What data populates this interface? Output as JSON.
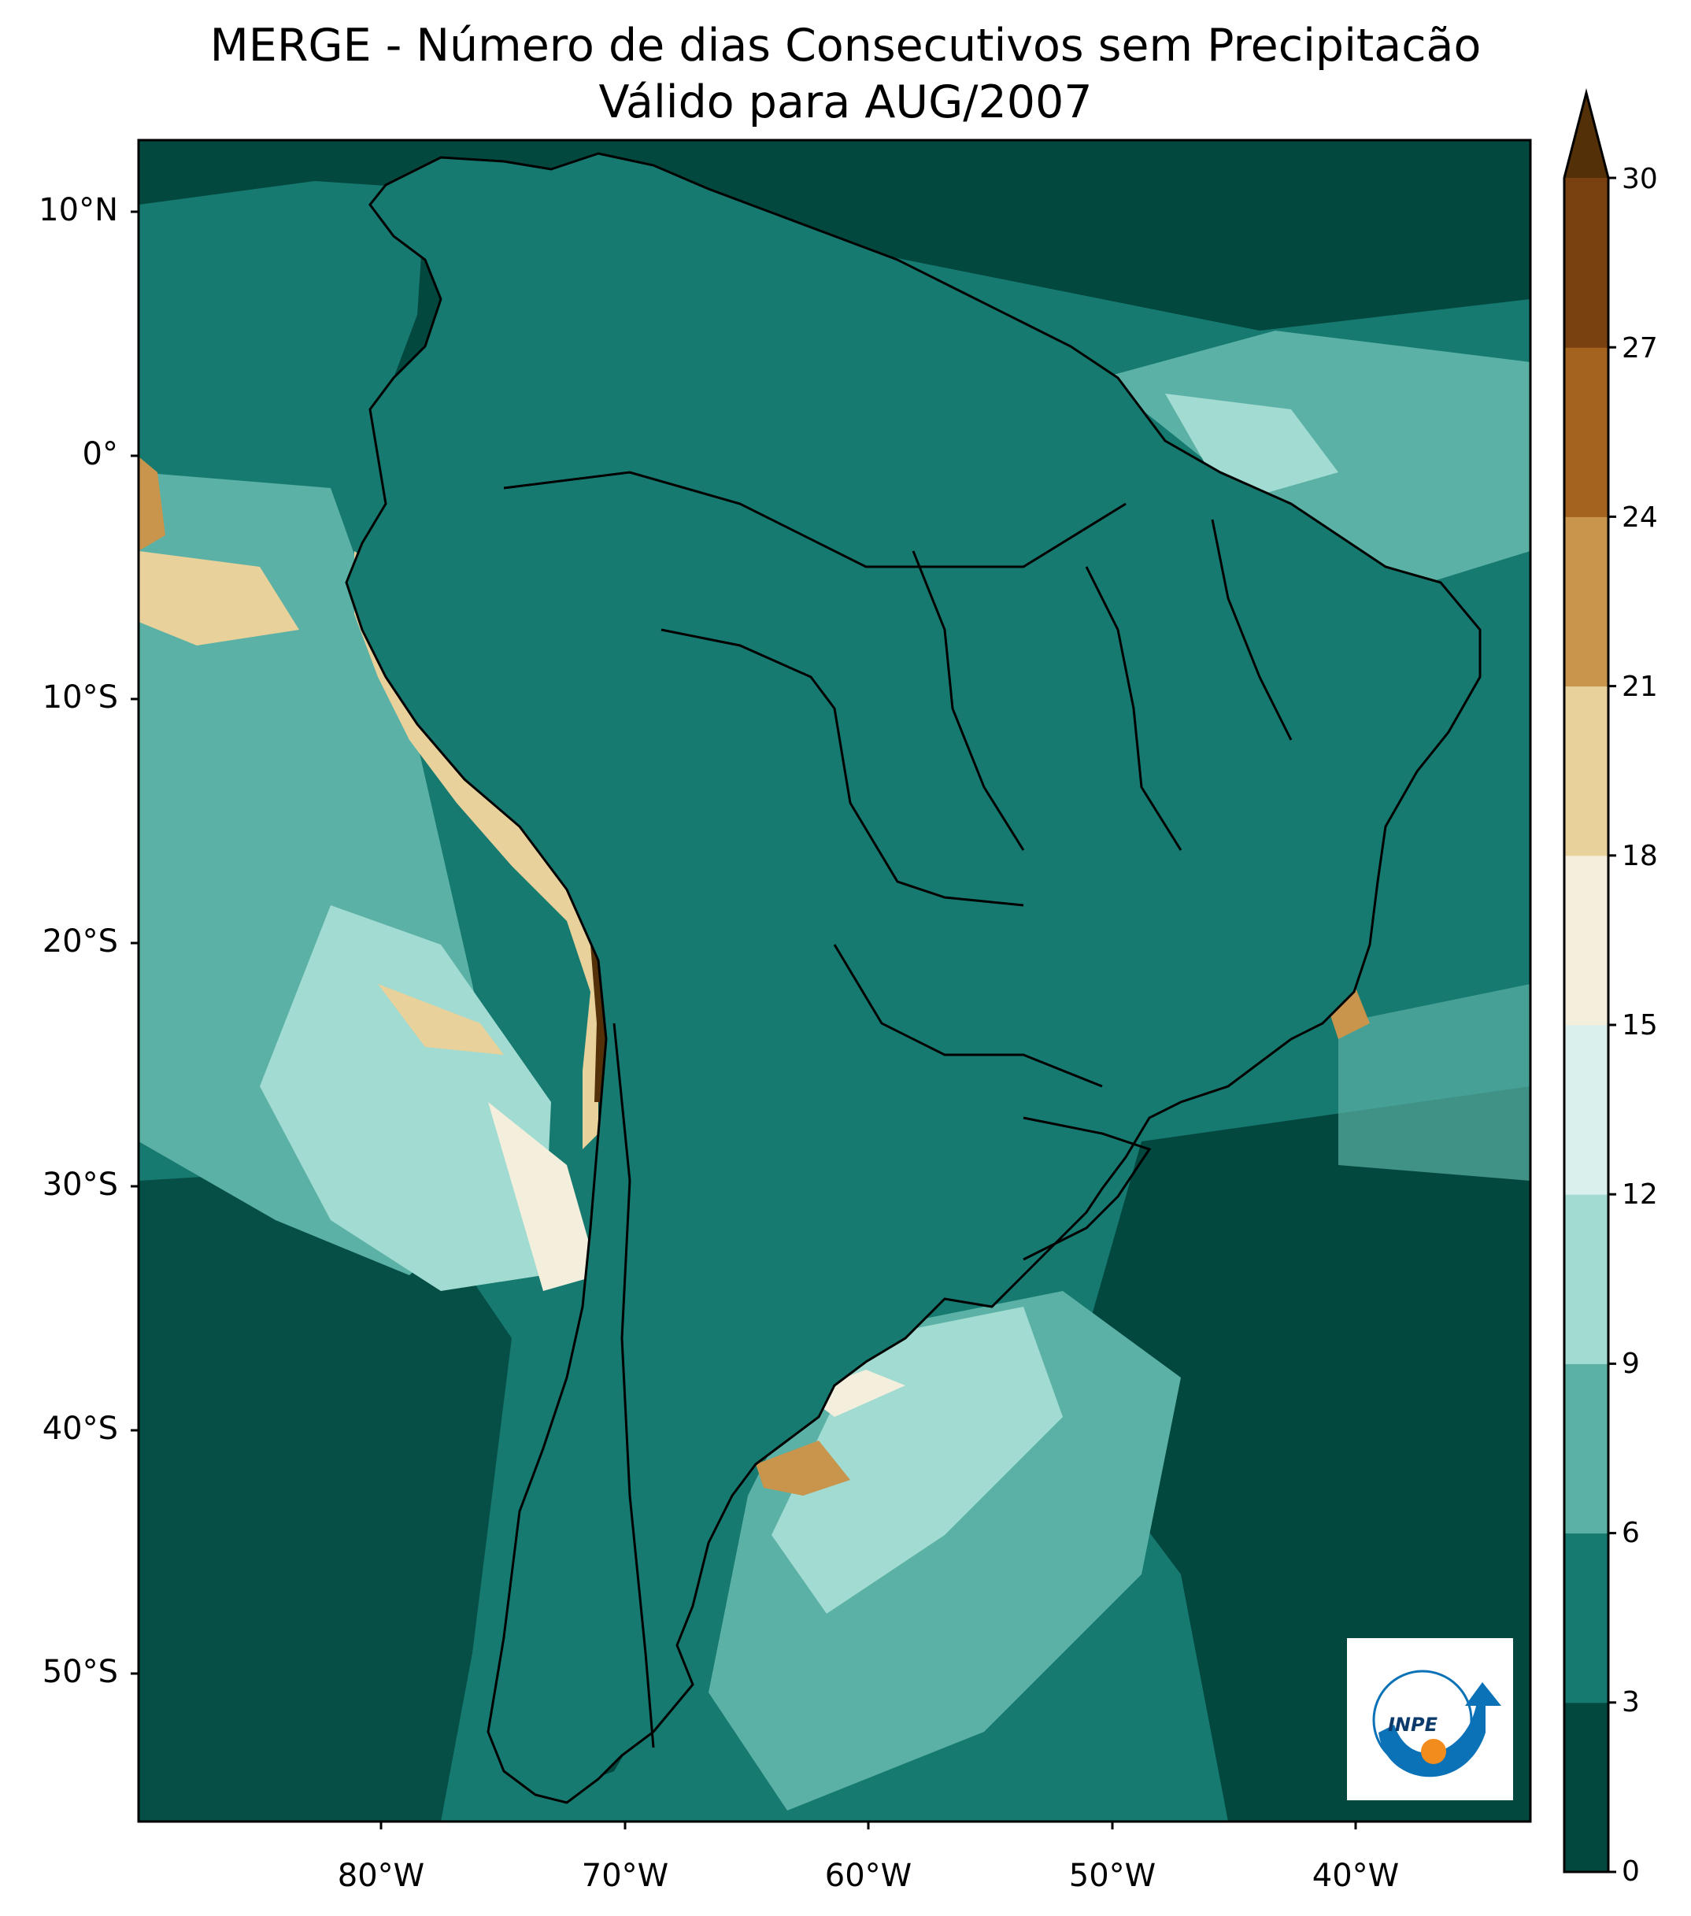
{
  "title": {
    "line1": "MERGE - Número de dias Consecutivos sem Precipitacão",
    "line2": "Válido para AUG/2007"
  },
  "axes": {
    "lat_labels": [
      "10°N",
      "0°",
      "10°S",
      "20°S",
      "30°S",
      "40°S",
      "50°S"
    ],
    "lon_labels": [
      "80°W",
      "70°W",
      "60°W",
      "50°W",
      "40°W"
    ]
  },
  "colorbar": {
    "ticks": [
      "0",
      "3",
      "6",
      "9",
      "12",
      "15",
      "18",
      "21",
      "24",
      "27",
      "30"
    ],
    "colors": [
      "#03483f",
      "#167a71",
      "#5bb1a5",
      "#a1dbd1",
      "#d9f0ec",
      "#f4efdd",
      "#e8d19a",
      "#c9944b",
      "#a4631f",
      "#794010",
      "#533007"
    ],
    "extend": "max"
  },
  "logo": {
    "text": "INPE",
    "arrow_color": "#0b72b8",
    "dot_color": "#f28c1c"
  },
  "map": {
    "region": "South America",
    "colors": {
      "ocean_dark": "#03483f",
      "ocean_mid": "#167a71",
      "ocean_light": "#5bb1a5",
      "ocean_pale": "#a1dbd1",
      "cream": "#f4efdd",
      "tan": "#e8d19a",
      "brown": "#a4631f",
      "dark_brown": "#533007"
    }
  }
}
